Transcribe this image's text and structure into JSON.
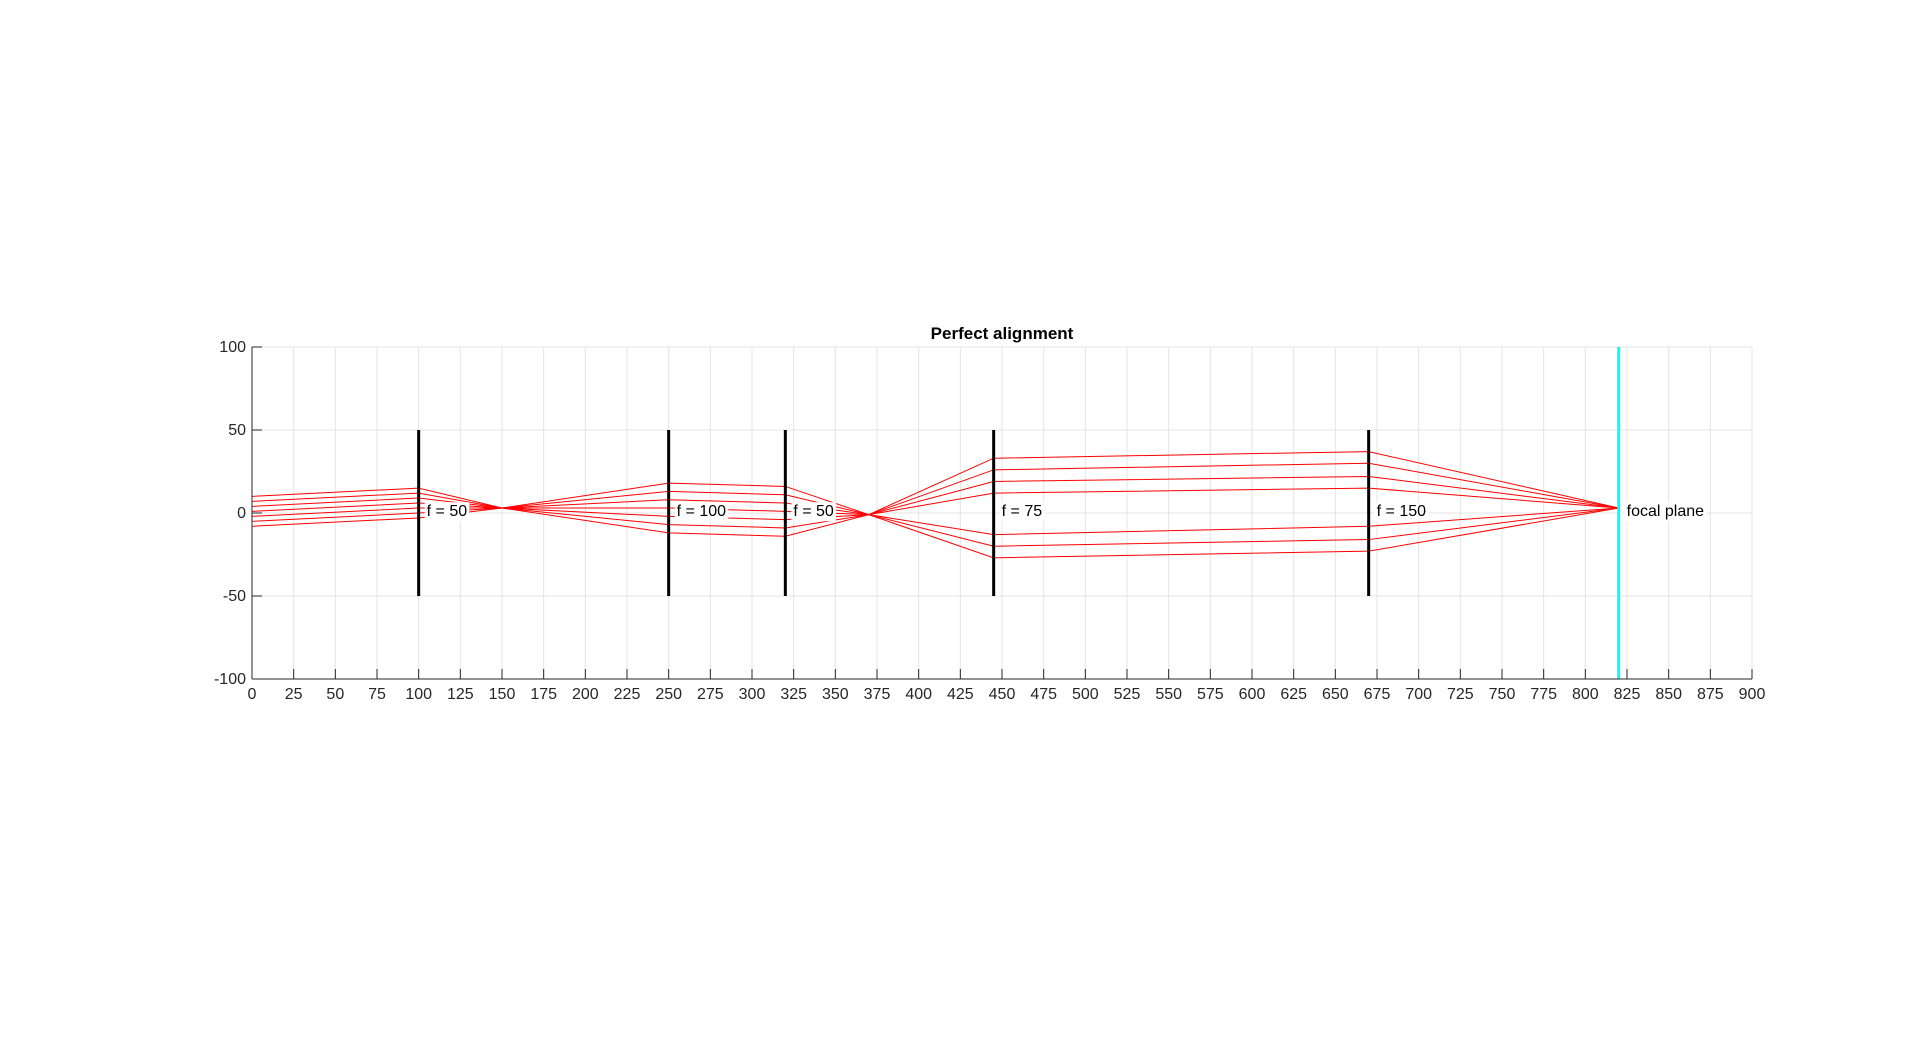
{
  "chart_data": {
    "type": "line",
    "title": "Perfect alignment",
    "xlabel": "",
    "ylabel": "",
    "xlim": [
      0,
      900
    ],
    "ylim": [
      -100,
      100
    ],
    "x_ticks": [
      0,
      25,
      50,
      75,
      100,
      125,
      150,
      175,
      200,
      225,
      250,
      275,
      300,
      325,
      350,
      375,
      400,
      425,
      450,
      475,
      500,
      525,
      550,
      575,
      600,
      625,
      650,
      675,
      700,
      725,
      750,
      775,
      800,
      825,
      850,
      875,
      900
    ],
    "y_ticks": [
      100,
      50,
      0,
      -50,
      -100
    ],
    "grid": true,
    "ray_color": "#ff0000",
    "lens_color": "#000000",
    "focal_plane_color": "#00ffff",
    "lens_half_height": 50,
    "lenses": [
      {
        "x": 100,
        "label": "f = 50"
      },
      {
        "x": 250,
        "label": "f = 100"
      },
      {
        "x": 320,
        "label": "f = 50"
      },
      {
        "x": 445,
        "label": "f = 75"
      },
      {
        "x": 670,
        "label": "f = 150"
      }
    ],
    "focal_plane": {
      "x": 820,
      "label": "focal plane"
    },
    "rays": {
      "x_points": [
        0,
        100,
        150,
        250,
        320,
        370,
        445,
        670,
        820
      ],
      "series": [
        {
          "y": [
            10,
            15,
            3,
            18,
            16,
            -1,
            33,
            37,
            3
          ]
        },
        {
          "y": [
            7,
            12,
            3,
            13,
            11,
            -1,
            26,
            30,
            3
          ]
        },
        {
          "y": [
            4,
            9,
            3,
            8,
            6,
            -1,
            19,
            22,
            3
          ]
        },
        {
          "y": [
            1,
            6,
            3,
            3,
            1,
            -1,
            12,
            15,
            3
          ]
        },
        {
          "y": [
            -2,
            3,
            3,
            -2,
            -4,
            -1,
            -13,
            -8,
            3
          ]
        },
        {
          "y": [
            -5,
            0,
            3,
            -7,
            -9,
            -1,
            -20,
            -16,
            3
          ]
        },
        {
          "y": [
            -8,
            -3,
            3,
            -12,
            -14,
            -1,
            -27,
            -23,
            3
          ]
        }
      ]
    }
  }
}
